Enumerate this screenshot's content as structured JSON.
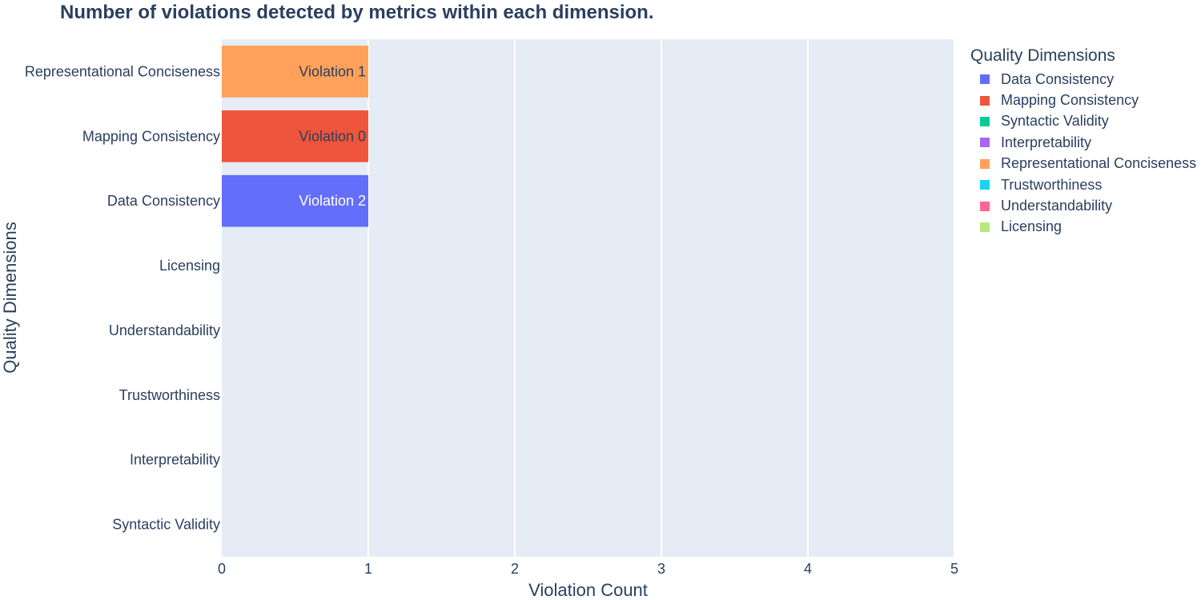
{
  "chart_data": {
    "type": "bar",
    "orientation": "horizontal",
    "title": "Number of violations detected by metrics within each dimension.",
    "xlabel": "Violation Count",
    "ylabel": "Quality Dimensions",
    "xlim": [
      0,
      5
    ],
    "xticks": [
      "0",
      "1",
      "2",
      "3",
      "4",
      "5"
    ],
    "grid": true,
    "categories": [
      "Syntactic Validity",
      "Interpretability",
      "Trustworthiness",
      "Understandability",
      "Licensing",
      "Data Consistency",
      "Mapping Consistency",
      "Representational Conciseness"
    ],
    "legend_title": "Quality Dimensions",
    "legend_position": "right",
    "series": [
      {
        "name": "Data Consistency",
        "color": "#636efa",
        "category": "Data Consistency",
        "value": 1,
        "label": "Violation 2",
        "label_color": "#ffffff"
      },
      {
        "name": "Mapping Consistency",
        "color": "#ef553b",
        "category": "Mapping Consistency",
        "value": 1,
        "label": "Violation 0",
        "label_color": "#2a3f5f"
      },
      {
        "name": "Syntactic Validity",
        "color": "#00cc96",
        "category": "Syntactic Validity",
        "value": 0,
        "label": "",
        "label_color": "#2a3f5f"
      },
      {
        "name": "Interpretability",
        "color": "#ab63fa",
        "category": "Interpretability",
        "value": 0,
        "label": "",
        "label_color": "#2a3f5f"
      },
      {
        "name": "Representational Conciseness",
        "color": "#ffa15a",
        "category": "Representational Conciseness",
        "value": 1,
        "label": "Violation 1",
        "label_color": "#2a3f5f"
      },
      {
        "name": "Trustworthiness",
        "color": "#19d3f3",
        "category": "Trustworthiness",
        "value": 0,
        "label": "",
        "label_color": "#2a3f5f"
      },
      {
        "name": "Understandability",
        "color": "#ff6692",
        "category": "Understandability",
        "value": 0,
        "label": "",
        "label_color": "#2a3f5f"
      },
      {
        "name": "Licensing",
        "color": "#b6e880",
        "category": "Licensing",
        "value": 0,
        "label": "",
        "label_color": "#2a3f5f"
      }
    ],
    "plot_background": "#e5ecf6",
    "text_color": "#2a3f5f"
  }
}
